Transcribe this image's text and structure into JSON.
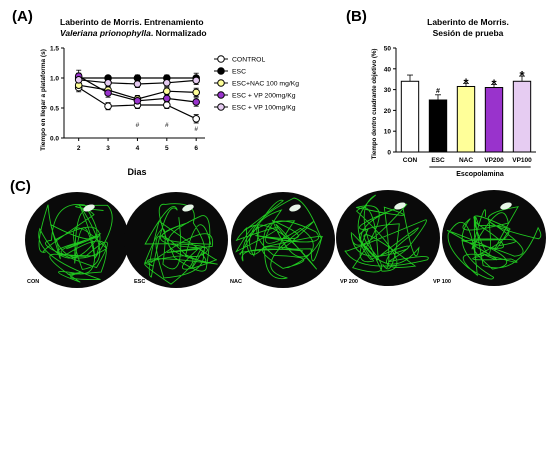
{
  "panels": {
    "a": "(A)",
    "b": "(B)",
    "c": "(C)"
  },
  "chart_data": [
    {
      "type": "line",
      "title_line1": "Laberinto de Morris.  Entrenamiento",
      "title_line2_italic": "Valeriana prionophylla",
      "title_line2_rest": ". Normalizado",
      "xlabel": "Dias",
      "ylabel": "Tiempo en llegar a plataforma (s)",
      "x": [
        2,
        3,
        4,
        5,
        6
      ],
      "xlim": [
        1.5,
        6.3
      ],
      "ylim": [
        0.0,
        1.5
      ],
      "yticks": [
        "0.0",
        "0.5",
        "1.0",
        "1.5"
      ],
      "series": [
        {
          "name": "CONTROL",
          "fill": "#ffffff",
          "values": [
            0.84,
            0.53,
            0.55,
            0.55,
            0.32
          ],
          "err": [
            0.07,
            0.06,
            0.06,
            0.06,
            0.07
          ]
        },
        {
          "name": "ESC",
          "fill": "#000000",
          "values": [
            1.0,
            1.0,
            1.0,
            1.0,
            1.0
          ],
          "err": [
            0.08,
            0.04,
            0.05,
            0.05,
            0.08
          ]
        },
        {
          "name": "ESC+NAC 100 mg/Kg",
          "fill": "#ffff99",
          "values": [
            0.88,
            0.8,
            0.65,
            0.78,
            0.76
          ],
          "err": [
            0.07,
            0.06,
            0.06,
            0.06,
            0.07
          ]
        },
        {
          "name": "ESC + VP 200mg/Kg",
          "fill": "#9933cc",
          "values": [
            1.03,
            0.75,
            0.62,
            0.66,
            0.6
          ],
          "err": [
            0.1,
            0.07,
            0.06,
            0.06,
            0.07
          ]
        },
        {
          "name": "ESC + VP 100mg/Kg",
          "fill": "#e6ccf2",
          "values": [
            0.97,
            0.92,
            0.9,
            0.92,
            0.96
          ],
          "err": [
            0.08,
            0.06,
            0.06,
            0.06,
            0.07
          ]
        }
      ],
      "annotations": [
        {
          "x": 4,
          "y": 0.18,
          "text": "#"
        },
        {
          "x": 5,
          "y": 0.18,
          "text": "#"
        },
        {
          "x": 6,
          "y": 0.12,
          "text": "#"
        }
      ]
    },
    {
      "type": "bar",
      "title_line1": "Laberinto de Morris.",
      "title_line2": "Sesión de prueba",
      "ylabel": "Tiempo dentro cuadrante objetivo (%)",
      "categories": [
        "CON",
        "ESC",
        "NAC",
        "VP200",
        "VP100"
      ],
      "values": [
        34,
        25,
        31.5,
        31,
        34
      ],
      "err": [
        3,
        2.5,
        1.5,
        1.5,
        2.5
      ],
      "colors": [
        "#ffffff",
        "#000000",
        "#ffff99",
        "#9933cc",
        "#e6ccf2"
      ],
      "markers": [
        "",
        "#",
        "*",
        "*",
        "*"
      ],
      "ylim": [
        0,
        50
      ],
      "yticks": [
        "0",
        "10",
        "20",
        "30",
        "40",
        "50"
      ],
      "group_label": "Escopolamina"
    }
  ],
  "arenas": [
    {
      "label": "CON"
    },
    {
      "label": "ESC"
    },
    {
      "label": "NAC"
    },
    {
      "label": "VP 200"
    },
    {
      "label": "VP 100"
    }
  ]
}
